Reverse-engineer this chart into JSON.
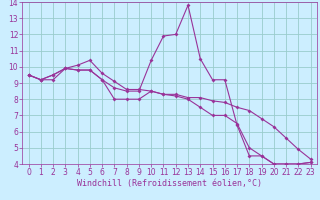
{
  "bg_color": "#cceeff",
  "grid_color": "#99cccc",
  "line_color": "#993399",
  "xlim": [
    -0.5,
    23.5
  ],
  "ylim": [
    4,
    14
  ],
  "xticks": [
    0,
    1,
    2,
    3,
    4,
    5,
    6,
    7,
    8,
    9,
    10,
    11,
    12,
    13,
    14,
    15,
    16,
    17,
    18,
    19,
    20,
    21,
    22,
    23
  ],
  "yticks": [
    4,
    5,
    6,
    7,
    8,
    9,
    10,
    11,
    12,
    13,
    14
  ],
  "xlabel": "Windchill (Refroidissement éolien,°C)",
  "line1_x": [
    0,
    1,
    2,
    3,
    4,
    5,
    6,
    7,
    8,
    9,
    10,
    11,
    12,
    13,
    14,
    15,
    16,
    17,
    18,
    19,
    20,
    21,
    22,
    23
  ],
  "line1_y": [
    9.5,
    9.2,
    9.2,
    9.9,
    10.1,
    10.4,
    9.6,
    9.1,
    8.6,
    8.6,
    8.5,
    8.3,
    8.3,
    8.1,
    8.1,
    7.9,
    7.8,
    7.5,
    7.3,
    6.8,
    6.3,
    5.6,
    4.9,
    4.3
  ],
  "line2_x": [
    0,
    1,
    2,
    3,
    4,
    5,
    6,
    7,
    8,
    9,
    10,
    11,
    12,
    13,
    14,
    15,
    16,
    17,
    18,
    19,
    20,
    21,
    22,
    23
  ],
  "line2_y": [
    9.5,
    9.2,
    9.5,
    9.9,
    9.8,
    9.8,
    9.2,
    8.7,
    8.5,
    8.5,
    10.4,
    11.9,
    12.0,
    13.8,
    10.5,
    9.2,
    9.2,
    6.4,
    4.5,
    4.5,
    4.0,
    4.0,
    4.0,
    4.1
  ],
  "line3_x": [
    0,
    1,
    2,
    3,
    4,
    5,
    6,
    7,
    8,
    9,
    10,
    11,
    12,
    13,
    14,
    15,
    16,
    17,
    18,
    19,
    20,
    21,
    22,
    23
  ],
  "line3_y": [
    9.5,
    9.2,
    9.5,
    9.9,
    9.8,
    9.8,
    9.2,
    8.0,
    8.0,
    8.0,
    8.5,
    8.3,
    8.2,
    8.0,
    7.5,
    7.0,
    7.0,
    6.5,
    5.0,
    4.5,
    4.0,
    4.0,
    4.0,
    4.1
  ],
  "tick_fontsize": 5.5,
  "xlabel_fontsize": 6.0,
  "marker_size": 2.0,
  "line_width": 0.8
}
